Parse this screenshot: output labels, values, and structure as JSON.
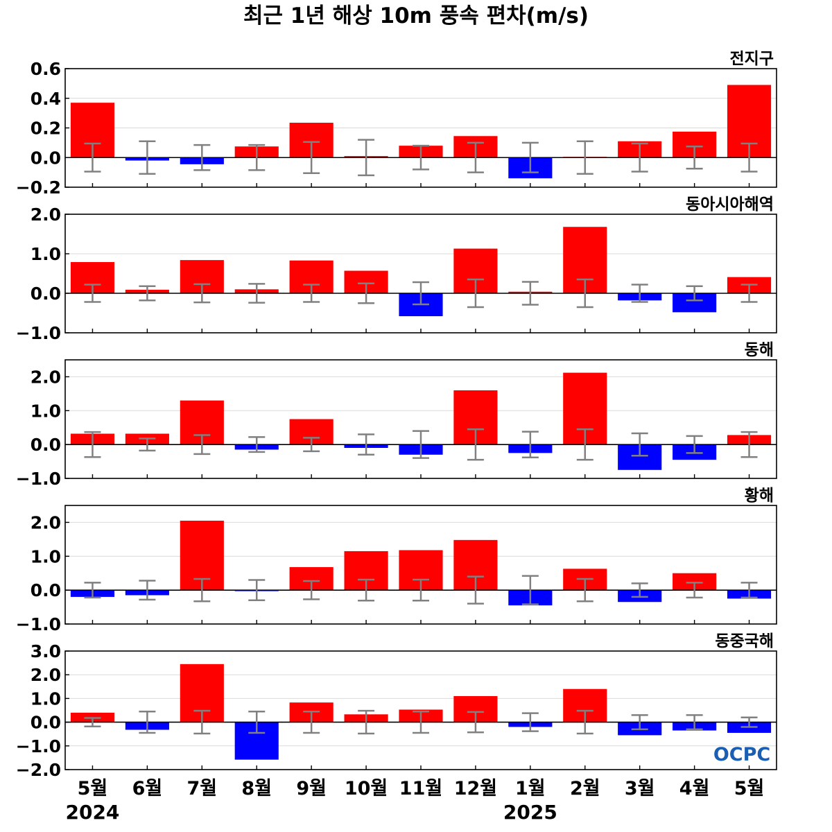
{
  "chart_data": {
    "type": "bar",
    "title": "최근 1년 해상 10m 풍속 편차(m/s)",
    "categories": [
      "5월",
      "6월",
      "7월",
      "8월",
      "9월",
      "10월",
      "11월",
      "12월",
      "1월",
      "2월",
      "3월",
      "4월",
      "5월"
    ],
    "year_labels": [
      {
        "category_index": 0,
        "label": "2024"
      },
      {
        "category_index": 8,
        "label": "2025"
      }
    ],
    "colors": {
      "positive": "#ff0000",
      "negative": "#0000ff",
      "error_bar": "#808080",
      "grid": "#d9d9d9"
    },
    "grid": true,
    "legend": "none",
    "logo_text": "OCPC",
    "panels": [
      {
        "region": "전지구",
        "ylim": [
          -0.2,
          0.6
        ],
        "yticks": [
          -0.2,
          0.0,
          0.2,
          0.4,
          0.6
        ],
        "ytick_labels": [
          "−0.2",
          "0.0",
          "0.2",
          "0.4",
          "0.6"
        ],
        "values": [
          0.37,
          -0.02,
          -0.045,
          0.075,
          0.235,
          0.01,
          0.08,
          0.145,
          -0.14,
          0.005,
          0.11,
          0.175,
          0.49
        ],
        "error": [
          0.095,
          0.11,
          0.085,
          0.085,
          0.105,
          0.12,
          0.08,
          0.1,
          0.1,
          0.11,
          0.095,
          0.075,
          0.095
        ]
      },
      {
        "region": "동아시아해역",
        "ylim": [
          -1.0,
          2.0
        ],
        "yticks": [
          -1.0,
          0.0,
          1.0,
          2.0
        ],
        "ytick_labels": [
          "−1.0",
          "0.0",
          "1.0",
          "2.0"
        ],
        "values": [
          0.79,
          0.09,
          0.84,
          0.1,
          0.83,
          0.57,
          -0.58,
          1.13,
          0.04,
          1.68,
          -0.18,
          -0.48,
          0.41
        ],
        "error": [
          0.22,
          0.18,
          0.23,
          0.24,
          0.22,
          0.25,
          0.28,
          0.35,
          0.29,
          0.35,
          0.22,
          0.18,
          0.22
        ]
      },
      {
        "region": "동해",
        "ylim": [
          -1.0,
          2.5
        ],
        "yticks": [
          -1.0,
          0.0,
          1.0,
          2.0
        ],
        "ytick_labels": [
          "−1.0",
          "0.0",
          "1.0",
          "2.0"
        ],
        "values": [
          0.32,
          0.32,
          1.3,
          -0.15,
          0.75,
          -0.1,
          -0.3,
          1.6,
          -0.25,
          2.12,
          -0.75,
          -0.45,
          0.28
        ],
        "error": [
          0.37,
          0.18,
          0.28,
          0.22,
          0.2,
          0.3,
          0.4,
          0.45,
          0.38,
          0.45,
          0.33,
          0.25,
          0.37
        ]
      },
      {
        "region": "황해",
        "ylim": [
          -1.0,
          2.5
        ],
        "yticks": [
          -1.0,
          0.0,
          1.0,
          2.0
        ],
        "ytick_labels": [
          "−1.0",
          "0.0",
          "1.0",
          "2.0"
        ],
        "values": [
          -0.2,
          -0.15,
          2.05,
          -0.03,
          0.68,
          1.15,
          1.18,
          1.48,
          -0.45,
          0.63,
          -0.35,
          0.5,
          -0.25
        ],
        "error": [
          0.22,
          0.28,
          0.33,
          0.3,
          0.27,
          0.31,
          0.31,
          0.4,
          0.42,
          0.33,
          0.2,
          0.22,
          0.22
        ]
      },
      {
        "region": "동중국해",
        "ylim": [
          -2.0,
          3.0
        ],
        "yticks": [
          -2.0,
          -1.0,
          0.0,
          1.0,
          2.0,
          3.0
        ],
        "ytick_labels": [
          "−2.0",
          "−1.0",
          "0.0",
          "1.0",
          "2.0",
          "3.0"
        ],
        "values": [
          0.4,
          -0.32,
          2.45,
          -1.58,
          0.83,
          0.33,
          0.53,
          1.1,
          -0.2,
          1.4,
          -0.55,
          -0.35,
          -0.45
        ],
        "error": [
          0.18,
          0.45,
          0.48,
          0.45,
          0.45,
          0.48,
          0.45,
          0.43,
          0.38,
          0.48,
          0.3,
          0.3,
          0.2
        ]
      }
    ]
  }
}
